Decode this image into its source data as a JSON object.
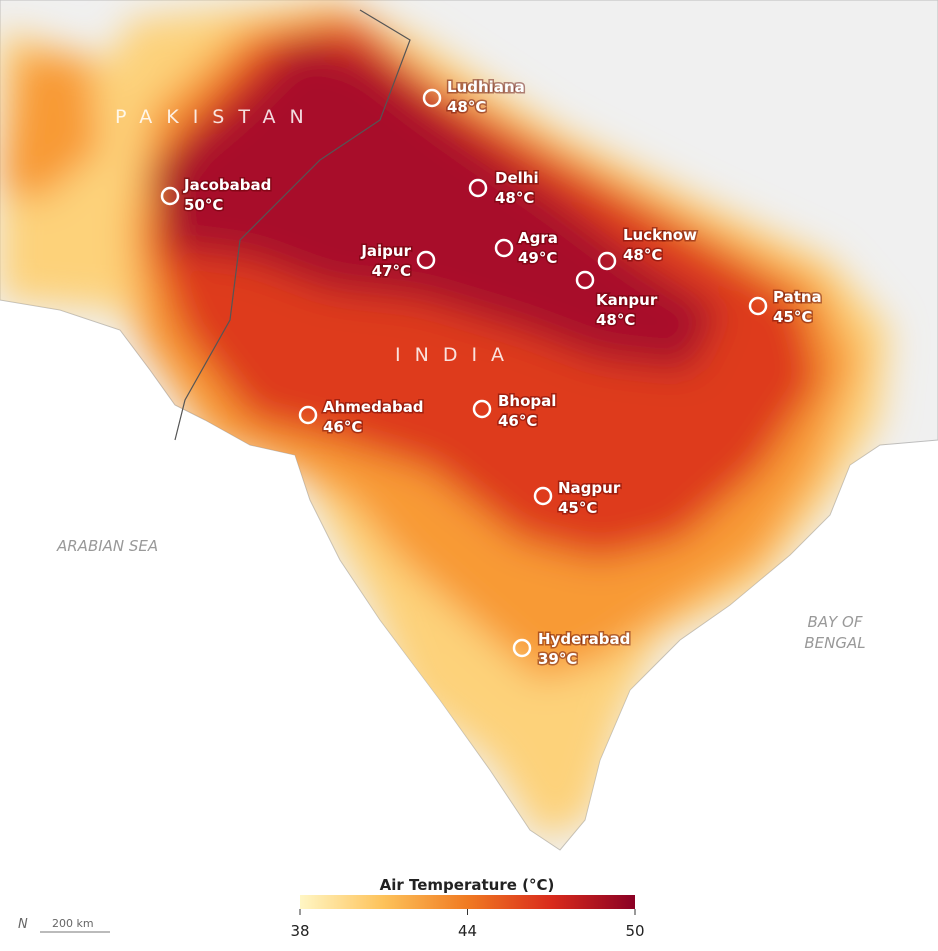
{
  "map": {
    "countries": [
      "PAKISTAN",
      "INDIA"
    ],
    "seas": {
      "arabian": "ARABIAN SEA",
      "bengal": [
        "BAY OF",
        "BENGAL"
      ]
    },
    "cities": [
      {
        "name": "Ludhiana",
        "temp": "48°C"
      },
      {
        "name": "Jacobabad",
        "temp": "50°C"
      },
      {
        "name": "Delhi",
        "temp": "48°C"
      },
      {
        "name": "Jaipur",
        "temp": "47°C"
      },
      {
        "name": "Agra",
        "temp": "49°C"
      },
      {
        "name": "Lucknow",
        "temp": "48°C"
      },
      {
        "name": "Kanpur",
        "temp": "48°C"
      },
      {
        "name": "Patna",
        "temp": "45°C"
      },
      {
        "name": "Ahmedabad",
        "temp": "46°C"
      },
      {
        "name": "Bhopal",
        "temp": "46°C"
      },
      {
        "name": "Nagpur",
        "temp": "45°C"
      },
      {
        "name": "Hyderabad",
        "temp": "39°C"
      }
    ],
    "legend": {
      "title": "Air Temperature (°C)",
      "lim": [
        38,
        50
      ],
      "ticks": [
        38,
        44,
        50
      ],
      "colors": [
        "#fff6c4",
        "#fdc25a",
        "#f07a22",
        "#d92b1c",
        "#8a0024"
      ]
    },
    "scale": "200 km",
    "north": "N"
  }
}
